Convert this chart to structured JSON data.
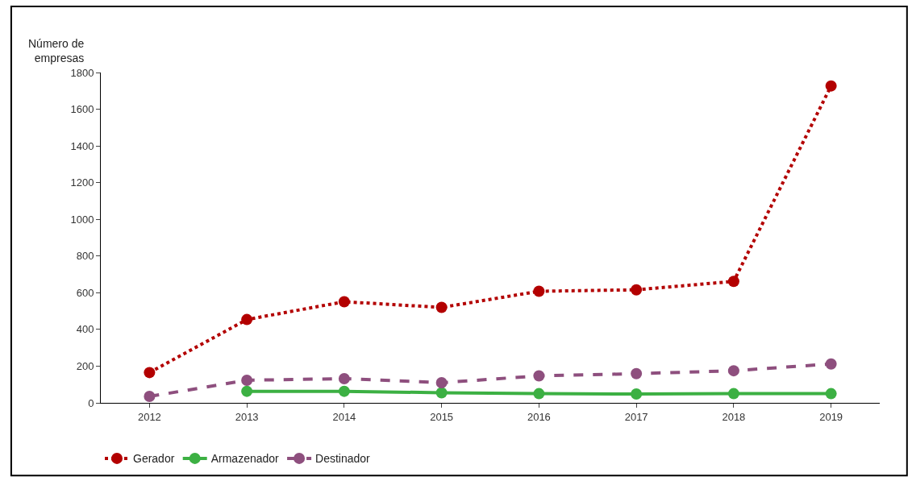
{
  "chart_data": {
    "type": "line",
    "ylabel": "Número de empresas",
    "categories": [
      "2012",
      "2013",
      "2014",
      "2015",
      "2016",
      "2017",
      "2018",
      "2019"
    ],
    "series": [
      {
        "name": "Gerador",
        "color": "#b30000",
        "line_style": "dotted",
        "values": [
          165,
          454,
          551,
          520,
          608,
          616,
          662,
          1727
        ]
      },
      {
        "name": "Armazenador",
        "color": "#3cb043",
        "line_style": "solid",
        "values": [
          null,
          63,
          63,
          55,
          50,
          48,
          50,
          50
        ]
      },
      {
        "name": "Destinador",
        "color": "#8e4f7e",
        "line_style": "dashed",
        "values": [
          35,
          123,
          132,
          110,
          147,
          159,
          175,
          212
        ]
      }
    ],
    "ylim": [
      0,
      1800
    ],
    "yticks": [
      0,
      200,
      400,
      600,
      800,
      1000,
      1200,
      1400,
      1600,
      1800
    ],
    "legend": "bottom left",
    "marker": "circle"
  }
}
